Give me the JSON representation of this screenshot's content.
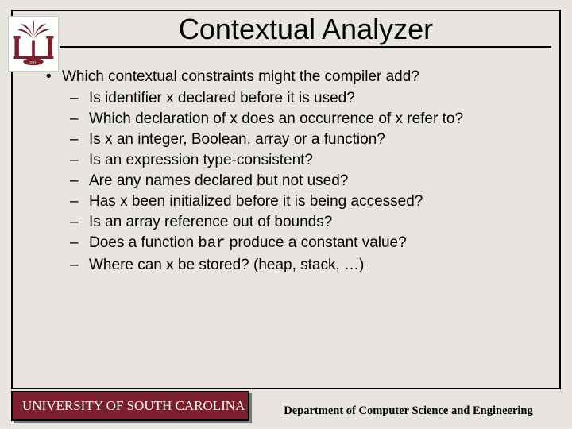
{
  "colors": {
    "background": "#e8e6df",
    "garnet": "#7a1f2b",
    "black": "#000000",
    "shadow": "#777777"
  },
  "title": "Contextual Analyzer",
  "bullets": {
    "main": "Which contextual constraints might the compiler add?",
    "subs": [
      "Is identifier x declared before it is used?",
      "Which declaration of x does an occurrence of x refer to?",
      "Is x an integer, Boolean, array or a function?",
      "Is an expression type-consistent?",
      "Are any names declared but not used?",
      "Has x been initialized before it is being accessed?",
      "Is an array reference out of bounds?",
      "Does a function |bar| produce a constant value?",
      "Where can x be stored? (heap, stack, …)"
    ]
  },
  "footer": {
    "left": "UNIVERSITY OF SOUTH CAROLINA",
    "right": "Department of Computer Science and Engineering"
  }
}
